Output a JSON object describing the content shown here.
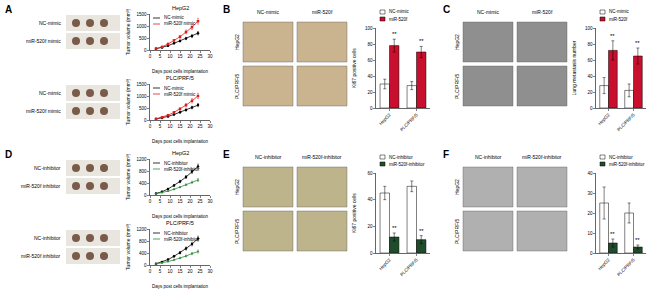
{
  "figure": {
    "panels": [
      {
        "letter": "A",
        "photo_labels": [
          "NC-mimic",
          "miR-520f mimic"
        ]
      },
      {
        "letter": "B",
        "column_labels": [
          "NC-mimic",
          "miR-520f"
        ],
        "row_labels": [
          "HepG2",
          "PLC/PRF/5"
        ]
      },
      {
        "letter": "C",
        "column_labels": [
          "NC-mimic",
          "miR-520f"
        ],
        "row_labels": [
          "HepG2",
          "PLC/PRF/5"
        ]
      },
      {
        "letter": "D",
        "photo_labels": [
          "NC-inhibitor",
          "miR-520f inhibitor"
        ]
      },
      {
        "letter": "E",
        "column_labels": [
          "NC-inhibitor",
          "miR-520f-inhibitor"
        ],
        "row_labels": [
          "HepG2",
          "PLC/PRF/5"
        ]
      },
      {
        "letter": "F",
        "column_labels": [
          "NC-inhibitor",
          "miR-520f-inhibitor"
        ],
        "row_labels": [
          "HepG2",
          "PLC/PRF/5"
        ]
      }
    ]
  },
  "chart_data": [
    {
      "type": "line",
      "title": "HepG2",
      "x_label": "Days post cells implantation",
      "y_label": "Tumor volume (mm³)",
      "x": [
        3,
        6,
        9,
        12,
        15,
        18,
        21,
        24
      ],
      "xlim": [
        0,
        30
      ],
      "xticks": [
        0,
        5,
        10,
        15,
        20,
        25,
        30
      ],
      "ylim": [
        0,
        1500
      ],
      "yticks": [
        0,
        500,
        1000,
        1500
      ],
      "grid": false,
      "series": [
        {
          "name": "NC-mimic",
          "color": "#000000",
          "marker": "circle",
          "values": [
            50,
            100,
            180,
            280,
            380,
            480,
            580,
            700
          ],
          "error": [
            10,
            15,
            20,
            30,
            40,
            50,
            60,
            70
          ]
        },
        {
          "name": "miR-520f mimic",
          "color": "#e41a1c",
          "marker": "square",
          "values": [
            60,
            130,
            250,
            400,
            550,
            750,
            950,
            1200
          ],
          "error": [
            10,
            20,
            30,
            40,
            60,
            80,
            100,
            120
          ]
        }
      ]
    },
    {
      "type": "line",
      "title": "PLC/PRF/5",
      "x_label": "Days post cells implantation",
      "y_label": "Tumor volume (mm³)",
      "x": [
        3,
        6,
        9,
        12,
        15,
        18,
        21,
        24
      ],
      "xlim": [
        0,
        30
      ],
      "xticks": [
        0,
        5,
        10,
        15,
        20,
        25,
        30
      ],
      "ylim": [
        0,
        1500
      ],
      "yticks": [
        0,
        500,
        1000,
        1500
      ],
      "grid": false,
      "series": [
        {
          "name": "NC-mimic",
          "color": "#000000",
          "marker": "circle",
          "values": [
            40,
            80,
            150,
            230,
            320,
            420,
            520,
            620
          ],
          "error": [
            8,
            12,
            18,
            25,
            35,
            45,
            55,
            65
          ]
        },
        {
          "name": "miR-520f mimic",
          "color": "#e41a1c",
          "marker": "square",
          "values": [
            50,
            110,
            200,
            320,
            460,
            620,
            800,
            1000
          ],
          "error": [
            10,
            15,
            25,
            35,
            50,
            70,
            90,
            110
          ]
        }
      ]
    },
    {
      "type": "bar",
      "y_label": "Ki67 positive cells",
      "categories": [
        "HepG2",
        "PLC/PRF/5"
      ],
      "ylim": [
        0,
        100
      ],
      "yticks": [
        0,
        20,
        40,
        60,
        80,
        100
      ],
      "grid": false,
      "series": [
        {
          "name": "NC-mimic",
          "color": "#ffffff",
          "values": [
            30,
            28
          ],
          "error": [
            6,
            5
          ]
        },
        {
          "name": "miR-520f",
          "color": "#c8102e",
          "values": [
            78,
            70
          ],
          "error": [
            8,
            7
          ],
          "significance": [
            "**",
            "**"
          ]
        }
      ]
    },
    {
      "type": "bar",
      "y_label": "Lung metastasis number",
      "categories": [
        "HepG2",
        "PLC/PRF/5"
      ],
      "ylim": [
        0,
        100
      ],
      "yticks": [
        0,
        20,
        40,
        60,
        80,
        100
      ],
      "grid": false,
      "series": [
        {
          "name": "NC-mimic",
          "color": "#ffffff",
          "values": [
            28,
            22
          ],
          "error": [
            10,
            8
          ]
        },
        {
          "name": "miR-520f",
          "color": "#c8102e",
          "values": [
            72,
            65
          ],
          "error": [
            12,
            10
          ],
          "significance": [
            "**",
            "**"
          ]
        }
      ]
    },
    {
      "type": "line",
      "title": "HepG2",
      "x_label": "Days post cells implantation",
      "y_label": "Tumor volume (mm³)",
      "x": [
        3,
        6,
        9,
        12,
        15,
        18,
        21,
        24
      ],
      "xlim": [
        0,
        30
      ],
      "xticks": [
        0,
        5,
        10,
        15,
        20,
        25,
        30
      ],
      "ylim": [
        0,
        1200
      ],
      "yticks": [
        0,
        400,
        800,
        1200
      ],
      "grid": false,
      "series": [
        {
          "name": "NC-inhibitor",
          "color": "#000000",
          "marker": "circle",
          "values": [
            50,
            110,
            200,
            320,
            450,
            600,
            780,
            950
          ],
          "error": [
            10,
            15,
            20,
            30,
            40,
            50,
            60,
            80
          ]
        },
        {
          "name": "miR-520f-inhibitor",
          "color": "#2e8b3c",
          "marker": "triangle-up",
          "values": [
            40,
            80,
            130,
            190,
            260,
            340,
            420,
            500
          ],
          "error": [
            8,
            10,
            15,
            20,
            25,
            30,
            40,
            50
          ]
        }
      ]
    },
    {
      "type": "line",
      "title": "PLC/PRF/5",
      "x_label": "Days post cells implantation",
      "y_label": "Tumor volume (mm³)",
      "x": [
        3,
        6,
        9,
        12,
        15,
        18,
        21,
        24
      ],
      "xlim": [
        0,
        30
      ],
      "xticks": [
        0,
        5,
        10,
        15,
        20,
        25,
        30
      ],
      "ylim": [
        0,
        1200
      ],
      "yticks": [
        0,
        400,
        800,
        1200
      ],
      "grid": false,
      "series": [
        {
          "name": "NC-inhibitor",
          "color": "#000000",
          "marker": "circle",
          "values": [
            45,
            100,
            180,
            290,
            410,
            550,
            700,
            880
          ],
          "error": [
            10,
            15,
            20,
            30,
            40,
            50,
            60,
            80
          ]
        },
        {
          "name": "miR-520f-inhibitor",
          "color": "#2e8b3c",
          "marker": "triangle-up",
          "values": [
            35,
            70,
            115,
            170,
            230,
            300,
            380,
            450
          ],
          "error": [
            8,
            10,
            15,
            20,
            25,
            30,
            40,
            50
          ]
        }
      ]
    },
    {
      "type": "bar",
      "y_label": "Ki67 positive cells",
      "categories": [
        "HepG2",
        "PLC/PRF/5"
      ],
      "ylim": [
        0,
        60
      ],
      "yticks": [
        0,
        20,
        40,
        60
      ],
      "grid": false,
      "series": [
        {
          "name": "NC-inhibitor",
          "color": "#ffffff",
          "values": [
            45,
            50
          ],
          "error": [
            5,
            4
          ]
        },
        {
          "name": "miR-520f-inhibitor",
          "color": "#1f4d2b",
          "values": [
            12,
            10
          ],
          "error": [
            3,
            3
          ],
          "significance": [
            "**",
            "**"
          ]
        }
      ]
    },
    {
      "type": "bar",
      "categories": [
        "HepG2",
        "PLC/PRF/5"
      ],
      "ylim": [
        0,
        40
      ],
      "yticks": [
        0,
        10,
        20,
        30,
        40
      ],
      "grid": false,
      "series": [
        {
          "name": "NC-inhibitor",
          "color": "#ffffff",
          "values": [
            25,
            20
          ],
          "error": [
            8,
            5
          ]
        },
        {
          "name": "miR-520f-inhibitor",
          "color": "#1f4d2b",
          "values": [
            5,
            3
          ],
          "error": [
            2,
            1
          ],
          "significance": [
            "**",
            "**"
          ]
        }
      ]
    }
  ]
}
